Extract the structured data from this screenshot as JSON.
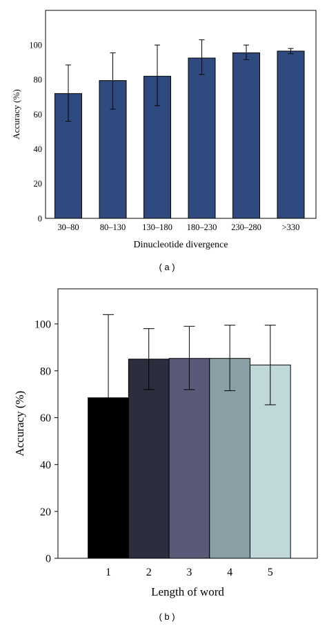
{
  "chart_data": [
    {
      "type": "bar",
      "panel_label": "( a )",
      "xlabel": "Dinucleotide divergence",
      "ylabel": "Accuracy (%)",
      "ylim": [
        0,
        120
      ],
      "yticks": [
        0,
        20,
        40,
        60,
        80,
        100
      ],
      "categories": [
        "30–80",
        "80–130",
        "130–180",
        "180–230",
        "230–280",
        ">330"
      ],
      "values": [
        72,
        79.5,
        82,
        92.5,
        95.5,
        96.5
      ],
      "error_low": [
        56,
        63,
        65,
        83,
        91.5,
        95
      ],
      "error_high": [
        88.5,
        95.5,
        100,
        103,
        100,
        98
      ],
      "colors": [
        "#2f4a7e",
        "#2f4a7e",
        "#2f4a7e",
        "#2f4a7e",
        "#2f4a7e",
        "#2f4a7e"
      ],
      "grid": false,
      "legend": "none"
    },
    {
      "type": "bar",
      "panel_label": "( b )",
      "xlabel": "Length of word",
      "ylabel": "Accuracy (%)",
      "ylim": [
        0,
        115
      ],
      "yticks": [
        0,
        20,
        40,
        60,
        80,
        100
      ],
      "categories": [
        "1",
        "2",
        "3",
        "4",
        "5"
      ],
      "values": [
        68.5,
        85,
        85.3,
        85.3,
        82.5
      ],
      "error_low": [
        33,
        72,
        72,
        71.5,
        65.5
      ],
      "error_high": [
        104,
        98,
        99,
        99.5,
        99.5
      ],
      "colors": [
        "#000000",
        "#2c2d3d",
        "#585a78",
        "#8a9ea6",
        "#c1d8da"
      ],
      "grid": false,
      "legend": "none"
    }
  ]
}
